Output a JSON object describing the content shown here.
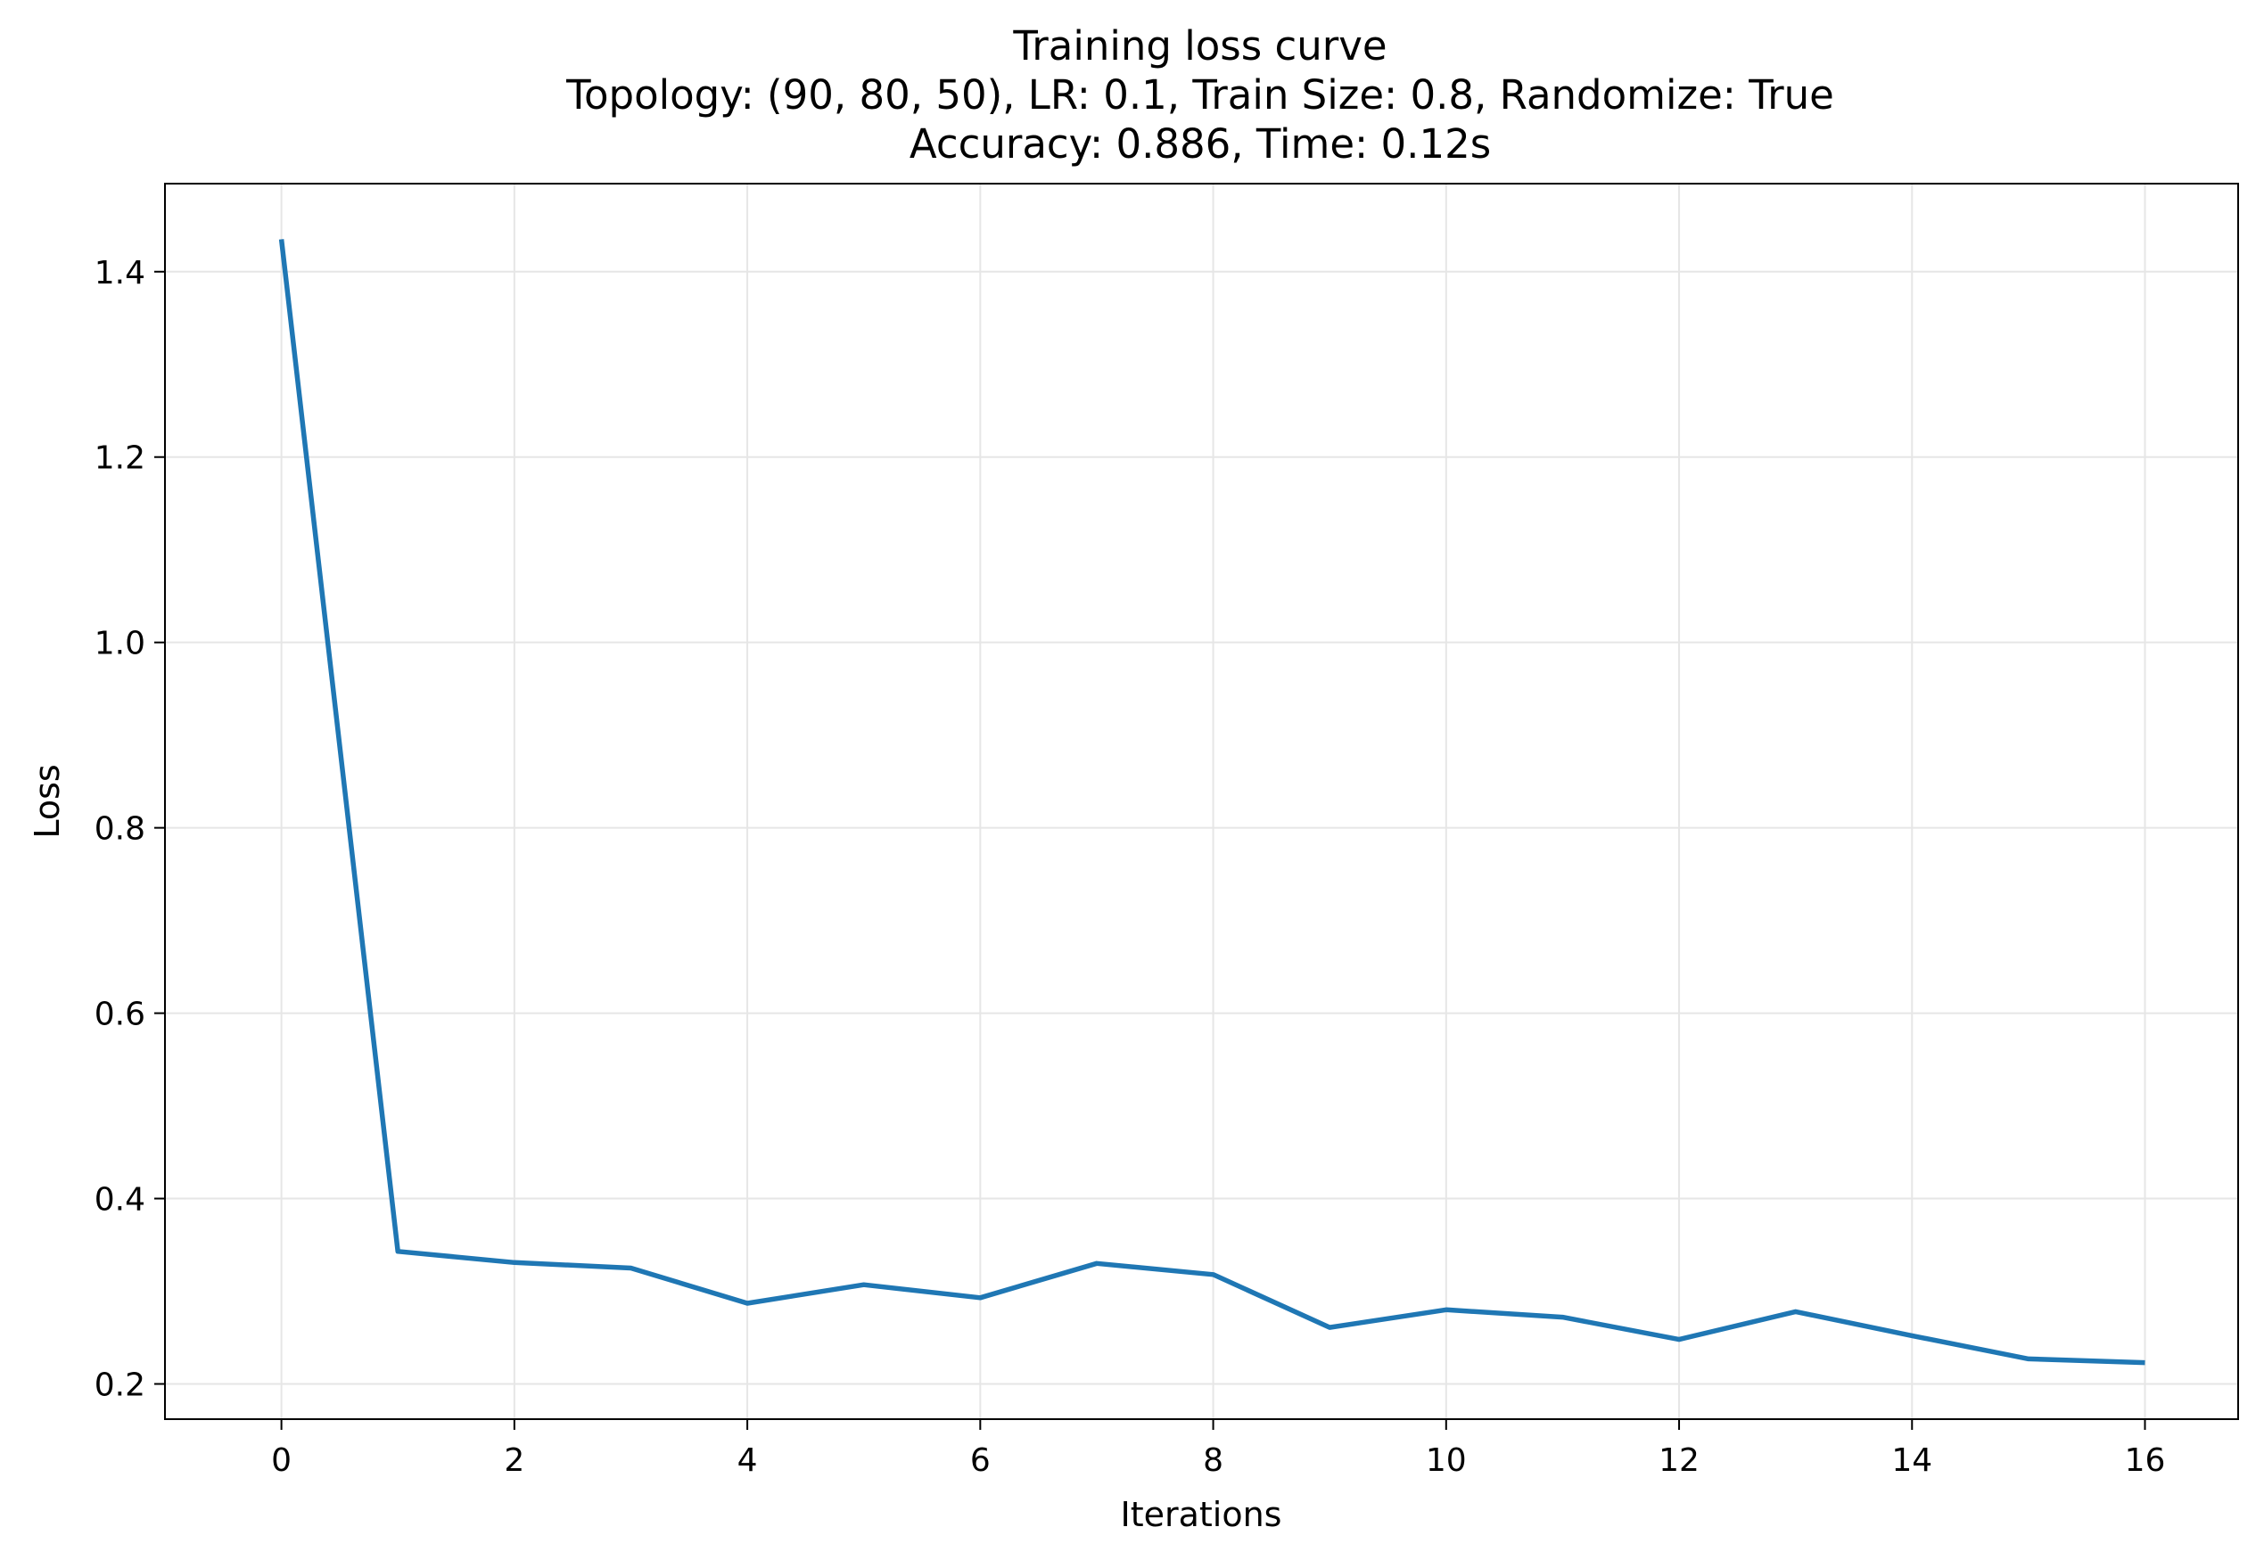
{
  "chart_data": {
    "type": "line",
    "title": "Training loss curve",
    "subtitle_lines": [
      "Topology: (90, 80, 50), LR: 0.1, Train Size: 0.8, Randomize: True",
      "Accuracy: 0.886, Time: 0.12s"
    ],
    "xlabel": "Iterations",
    "ylabel": "Loss",
    "xlim": [
      -1,
      16.8
    ],
    "ylim": [
      0.162,
      1.495
    ],
    "xticks": [
      0,
      2,
      4,
      6,
      8,
      10,
      12,
      14,
      16
    ],
    "xtick_labels": [
      "0",
      "2",
      "4",
      "6",
      "8",
      "10",
      "12",
      "14",
      "16"
    ],
    "yticks": [
      0.2,
      0.4,
      0.6,
      0.8,
      1.0,
      1.2,
      1.4
    ],
    "ytick_labels": [
      "0.2",
      "0.4",
      "0.6",
      "0.8",
      "1.0",
      "1.2",
      "1.4"
    ],
    "grid": true,
    "series": [
      {
        "color": "#1f77b4",
        "x": [
          0,
          1,
          2,
          3,
          4,
          5,
          6,
          7,
          8,
          9,
          10,
          11,
          12,
          13,
          14,
          15,
          16
        ],
        "values": [
          1.435,
          0.343,
          0.331,
          0.325,
          0.287,
          0.307,
          0.293,
          0.33,
          0.318,
          0.261,
          0.28,
          0.272,
          0.248,
          0.278,
          0.252,
          0.227,
          0.223
        ]
      }
    ],
    "colors": {
      "grid": "#e6e6e6",
      "axes": "#000000"
    }
  }
}
